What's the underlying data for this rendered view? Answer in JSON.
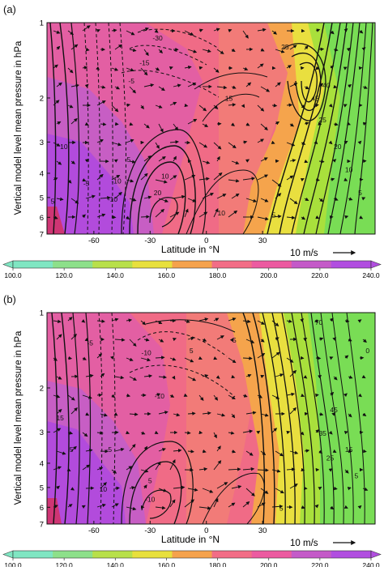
{
  "chart_data": [
    {
      "type": "heatmap",
      "panel_label": "(a)",
      "xlabel": "Latitude in °N",
      "ylabel": "Vertical model level mean pressure in hPa",
      "x_ticks": [
        -60,
        -30,
        0,
        30
      ],
      "y_ticks": [
        1,
        2,
        3,
        4,
        5,
        6,
        7
      ],
      "xlim": [
        -85,
        90
      ],
      "ylim": [
        7,
        1
      ],
      "y_scale": "log",
      "fill_variable": "temperature",
      "wind_vector_reference": "10 m/s",
      "contour_labels": [
        {
          "text": "-30",
          "lat": -26,
          "p": 1.18
        },
        {
          "text": "-15",
          "lat": -33,
          "p": 1.48
        },
        {
          "text": "-5",
          "lat": -40,
          "p": 1.75
        },
        {
          "text": "15",
          "lat": 12,
          "p": 2.05
        },
        {
          "text": "25",
          "lat": 42,
          "p": 1.28
        },
        {
          "text": "45",
          "lat": 58,
          "p": 2.05
        },
        {
          "text": "40",
          "lat": 64,
          "p": 1.82
        },
        {
          "text": "25",
          "lat": 62,
          "p": 2.5
        },
        {
          "text": "20",
          "lat": 70,
          "p": 3.2
        },
        {
          "text": "10",
          "lat": 76,
          "p": 3.95
        },
        {
          "text": "5",
          "lat": 82,
          "p": 4.9
        },
        {
          "text": "10",
          "lat": -76,
          "p": 3.2
        },
        {
          "text": "-5",
          "lat": -64,
          "p": 4.5
        },
        {
          "text": "-10",
          "lat": -48,
          "p": 4.4
        },
        {
          "text": "-5",
          "lat": -42,
          "p": 3.6
        },
        {
          "text": "-10",
          "lat": -50,
          "p": 5.2
        },
        {
          "text": "10",
          "lat": -22,
          "p": 4.2
        },
        {
          "text": "20",
          "lat": -26,
          "p": 4.9
        },
        {
          "text": "10",
          "lat": 8,
          "p": 5.9
        },
        {
          "text": "5",
          "lat": 36,
          "p": 6.0
        },
        {
          "text": "5",
          "lat": -82,
          "p": 5.3
        }
      ]
    },
    {
      "type": "heatmap",
      "panel_label": "(b)",
      "xlabel": "Latitude in °N",
      "ylabel": "Vertical model level mean pressure in hPa",
      "x_ticks": [
        -60,
        -30,
        0,
        30
      ],
      "y_ticks": [
        1,
        2,
        3,
        4,
        5,
        6,
        7
      ],
      "xlim": [
        -85,
        90
      ],
      "ylim": [
        7,
        1
      ],
      "y_scale": "log",
      "fill_variable": "temperature",
      "wind_vector_reference": "10 m/s",
      "contour_labels": [
        {
          "text": "-5",
          "lat": -62,
          "p": 1.35
        },
        {
          "text": "-10",
          "lat": -32,
          "p": 1.48
        },
        {
          "text": "-10",
          "lat": -25,
          "p": 2.2
        },
        {
          "text": "5",
          "lat": -8,
          "p": 1.45
        },
        {
          "text": "5",
          "lat": 15,
          "p": 1.32
        },
        {
          "text": "70",
          "lat": 60,
          "p": 1.12
        },
        {
          "text": "0",
          "lat": 86,
          "p": 1.45
        },
        {
          "text": "45",
          "lat": 68,
          "p": 2.5
        },
        {
          "text": "35",
          "lat": 62,
          "p": 3.1
        },
        {
          "text": "25",
          "lat": 66,
          "p": 3.9
        },
        {
          "text": "15",
          "lat": 76,
          "p": 3.6
        },
        {
          "text": "5",
          "lat": 80,
          "p": 4.6
        },
        {
          "text": "15",
          "lat": -78,
          "p": 2.7
        },
        {
          "text": "5",
          "lat": -72,
          "p": 3.6
        },
        {
          "text": "-5",
          "lat": -52,
          "p": 3.6
        },
        {
          "text": "10",
          "lat": -55,
          "p": 5.2
        },
        {
          "text": "5",
          "lat": -30,
          "p": 4.8
        },
        {
          "text": "-10",
          "lat": -30,
          "p": 5.7
        },
        {
          "text": "5",
          "lat": 40,
          "p": 6.2
        }
      ]
    }
  ],
  "colorbar": {
    "ticks": [
      "100.0",
      "120.0",
      "140.0",
      "160.0",
      "180.0",
      "200.0",
      "220.0",
      "240.0"
    ],
    "range": [
      100,
      240
    ],
    "colors": [
      "#7fe6c2",
      "#8de08a",
      "#b8e04a",
      "#e8e03c",
      "#f5a24c",
      "#f26d86",
      "#ec5aa0",
      "#c45ac8",
      "#b14ee0"
    ]
  },
  "colors": {
    "polar_south_stratosphere": "#b24bdc",
    "midlat_south": "#d064b8",
    "tropics": "#ee5e8c",
    "north_mid": "#f27d77",
    "subtropical_jet_yellow": "#e9df3f",
    "north_pole_green": "#79dd55"
  }
}
